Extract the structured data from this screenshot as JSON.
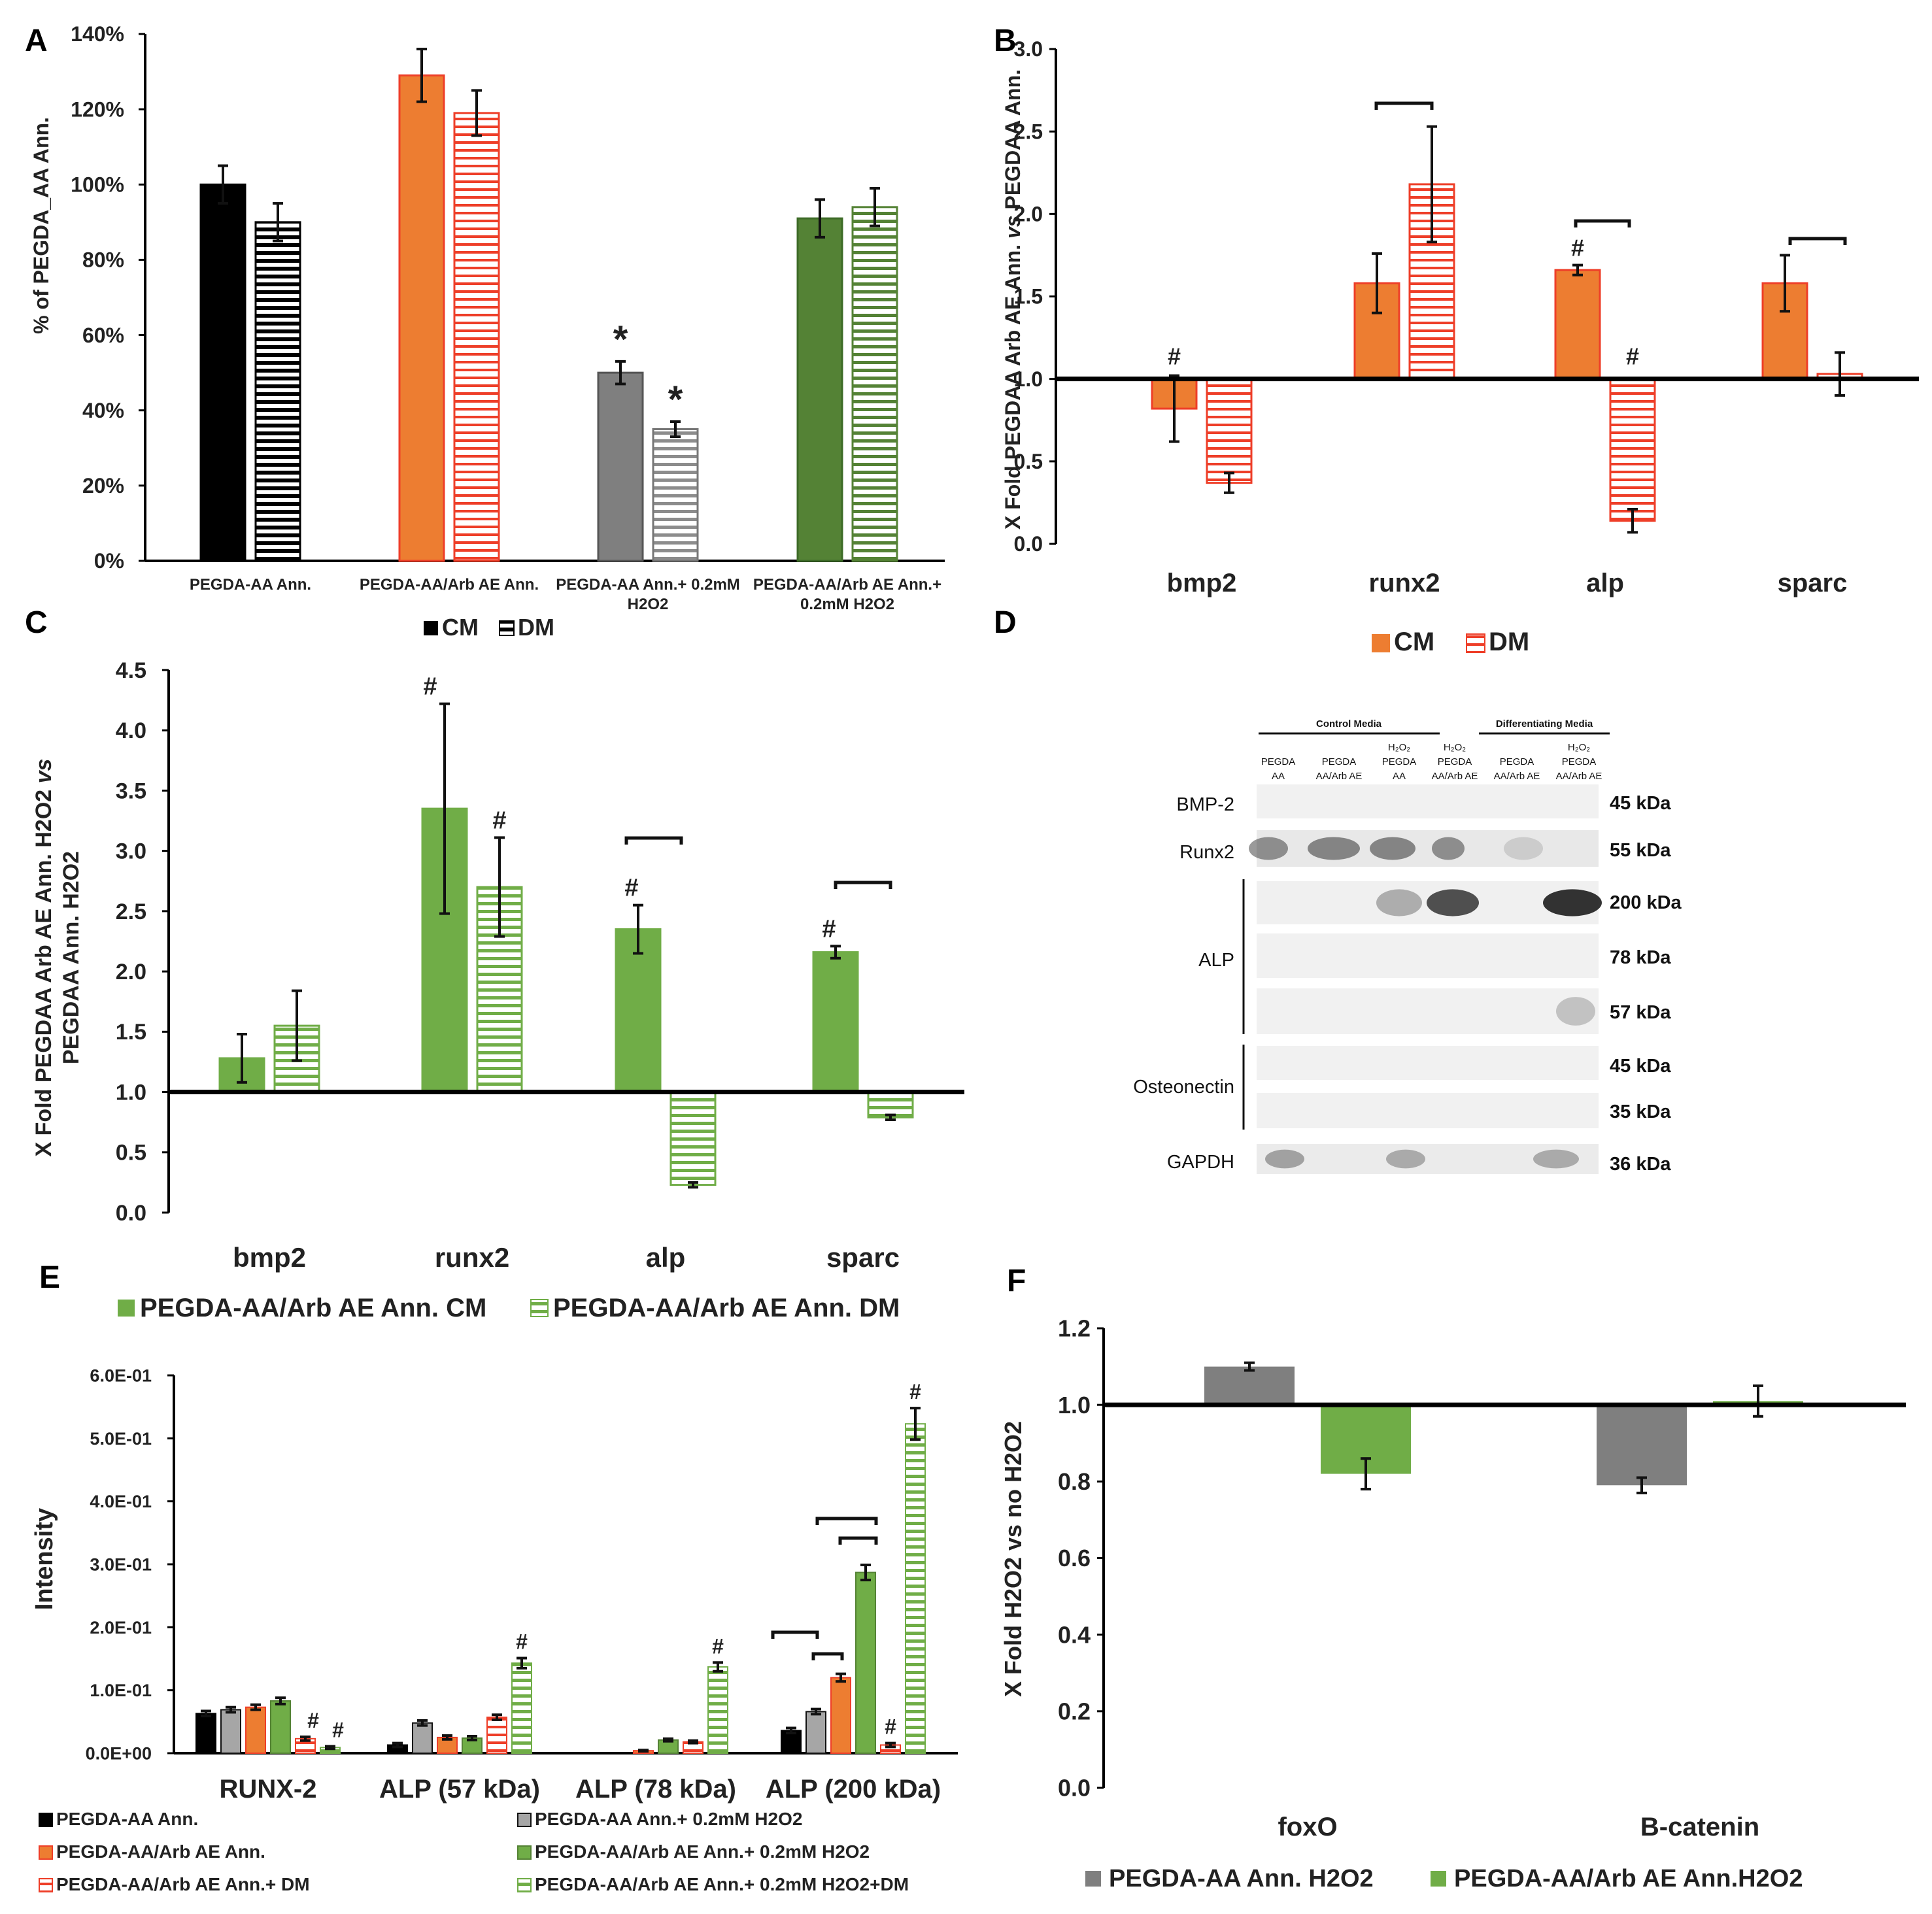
{
  "panel_labels": [
    "A",
    "B",
    "C",
    "D",
    "E",
    "F"
  ],
  "colors": {
    "black": "#000000",
    "gray": "#7f7f7f",
    "orange": "#ed7d31",
    "orange_stripe": "#ee3e28",
    "green": "#70ad47",
    "green_dark": "#548235",
    "axis": "#000000"
  },
  "chart_data": [
    {
      "panel": "A",
      "type": "bar",
      "ylabel": "% of PEGDA_AA Ann.",
      "ylim": [
        0,
        140
      ],
      "yticks": [
        "0%",
        "20%",
        "40%",
        "60%",
        "80%",
        "100%",
        "120%",
        "140%"
      ],
      "categories": [
        "PEGDA-AA Ann.",
        "PEGDA-AA/Arb AE Ann.",
        "PEGDA-AA Ann.+ 0.2mM H2O2",
        "PEGDA-AA/Arb AE Ann.+ 0.2mM H2O2"
      ],
      "series": [
        {
          "name": "CM",
          "values": [
            100,
            129,
            50,
            91
          ],
          "errors": [
            5,
            7,
            3,
            5
          ]
        },
        {
          "name": "DM",
          "values": [
            90,
            119,
            35,
            94
          ],
          "errors": [
            5,
            6,
            2,
            5
          ]
        }
      ],
      "annotations": [
        {
          "text": "*",
          "category": 2,
          "series": 0
        },
        {
          "text": "*",
          "category": 2,
          "series": 1
        }
      ],
      "legend": [
        "CM",
        "DM"
      ]
    },
    {
      "panel": "B",
      "type": "bar",
      "ylabel": "X Fold PEGDAA Arb AE Ann. vs PEGDAA Ann.",
      "ylim": [
        0,
        3.0
      ],
      "baseline": 1.0,
      "yticks": [
        "0.0",
        "0.5",
        "1.0",
        "1.5",
        "2.0",
        "2.5",
        "3.0"
      ],
      "categories": [
        "bmp2",
        "runx2",
        "alp",
        "sparc"
      ],
      "series": [
        {
          "name": "CM",
          "values": [
            0.82,
            1.58,
            1.66,
            1.58
          ],
          "errors": [
            0.2,
            0.18,
            0.03,
            0.17
          ]
        },
        {
          "name": "DM",
          "values": [
            0.37,
            2.18,
            0.14,
            1.03
          ],
          "errors": [
            0.06,
            0.35,
            0.07,
            0.13
          ]
        }
      ],
      "hash_marks": [
        {
          "category": 0,
          "series": 0
        },
        {
          "category": 2,
          "series": 0
        },
        {
          "category": 2,
          "series": 1
        }
      ],
      "brackets": [
        1,
        2,
        3
      ],
      "legend": [
        "CM",
        "DM"
      ]
    },
    {
      "panel": "C",
      "type": "bar",
      "ylabel": "X Fold PEGDAA Arb AE Ann. H2O2 vs PEGDAA Ann. H2O2",
      "ylim": [
        0,
        4.5
      ],
      "baseline": 1.0,
      "yticks": [
        "0.0",
        "0.5",
        "1.0",
        "1.5",
        "2.0",
        "2.5",
        "3.0",
        "3.5",
        "4.0",
        "4.5"
      ],
      "categories": [
        "bmp2",
        "runx2",
        "alp",
        "sparc"
      ],
      "series": [
        {
          "name": "PEGDA-AA/Arb AE Ann. CM",
          "values": [
            1.28,
            3.35,
            2.35,
            2.16
          ],
          "errors": [
            0.2,
            0.87,
            0.2,
            0.05
          ]
        },
        {
          "name": "PEGDA-AA/Arb AE Ann. DM",
          "values": [
            1.55,
            2.7,
            0.23,
            0.79
          ],
          "errors": [
            0.29,
            0.41,
            0.02,
            0.02
          ]
        }
      ],
      "hash_marks": [
        {
          "category": 1,
          "series": 0
        },
        {
          "category": 1,
          "series": 1
        },
        {
          "category": 2,
          "series": 0
        },
        {
          "category": 3,
          "series": 0
        }
      ],
      "brackets": [
        2,
        3
      ],
      "legend": [
        "PEGDA-AA/Arb AE Ann. CM",
        "PEGDA-AA/Arb AE Ann. DM"
      ]
    },
    {
      "panel": "E",
      "type": "bar",
      "ylabel": "Intensity",
      "ylim": [
        0,
        0.6
      ],
      "yticks": [
        "0.0E+00",
        "1.0E-01",
        "2.0E-01",
        "3.0E-01",
        "4.0E-01",
        "5.0E-01",
        "6.0E-01"
      ],
      "categories": [
        "RUNX-2",
        "ALP (57 kDa)",
        "ALP (78 kDa)",
        "ALP (200 kDa)"
      ],
      "series": [
        {
          "name": "PEGDA-AA Ann.",
          "values": [
            0.063,
            0.013,
            0.0,
            0.036
          ],
          "errors": [
            0.004,
            0.003,
            0,
            0.004
          ]
        },
        {
          "name": "PEGDA-AA Ann.+ 0.2mM H2O2",
          "values": [
            0.069,
            0.048,
            0.0,
            0.066
          ],
          "errors": [
            0.004,
            0.004,
            0,
            0.004
          ]
        },
        {
          "name": "PEGDA-AA/Arb AE Ann.",
          "values": [
            0.073,
            0.025,
            0.004,
            0.12
          ],
          "errors": [
            0.004,
            0.003,
            0.001,
            0.006
          ]
        },
        {
          "name": "PEGDA-AA/Arb AE Ann.+ 0.2mM H2O2",
          "values": [
            0.083,
            0.024,
            0.021,
            0.287
          ],
          "errors": [
            0.005,
            0.003,
            0.002,
            0.012
          ]
        },
        {
          "name": "PEGDA-AA/Arb AE Ann.+ DM",
          "values": [
            0.023,
            0.057,
            0.018,
            0.013
          ],
          "errors": [
            0.003,
            0.004,
            0.002,
            0.003
          ]
        },
        {
          "name": "PEGDA-AA/Arb AE Ann.+ 0.2mM H2O2+DM",
          "values": [
            0.009,
            0.143,
            0.137,
            0.523
          ],
          "errors": [
            0.002,
            0.008,
            0.007,
            0.025
          ]
        }
      ],
      "hash_marks": [
        {
          "category": 0,
          "series": 4
        },
        {
          "category": 0,
          "series": 5
        },
        {
          "category": 1,
          "series": 5
        },
        {
          "category": 2,
          "series": 5
        },
        {
          "category": 3,
          "series": 4
        },
        {
          "category": 3,
          "series": 5
        }
      ]
    },
    {
      "panel": "F",
      "type": "bar",
      "ylabel": "X Fold H2O2 vs no H2O2",
      "ylim": [
        0,
        1.2
      ],
      "baseline": 1.0,
      "yticks": [
        "0.0",
        "0.2",
        "0.4",
        "0.6",
        "0.8",
        "1.0",
        "1.2"
      ],
      "categories": [
        "foxO",
        "B-catenin"
      ],
      "series": [
        {
          "name": "PEGDA-AA Ann. H2O2",
          "values": [
            1.1,
            0.79
          ],
          "errors": [
            0.01,
            0.02
          ]
        },
        {
          "name": "PEGDA-AA/Arb AE Ann.H2O2",
          "values": [
            0.82,
            1.01
          ],
          "errors": [
            0.04,
            0.04
          ]
        }
      ],
      "legend": [
        "PEGDA-AA Ann. H2O2",
        "PEGDA-AA/Arb AE Ann.H2O2"
      ]
    }
  ],
  "panel_a": {
    "cat_lines": [
      [
        "PEGDA-AA Ann."
      ],
      [
        "PEGDA-AA/Arb AE Ann."
      ],
      [
        "PEGDA-AA Ann.+ 0.2mM",
        "H2O2"
      ],
      [
        "PEGDA-AA/Arb AE Ann.+",
        "0.2mM H2O2"
      ]
    ]
  },
  "panel_b": {
    "ylabel_parts": [
      "X Fold PEGDAA Arb AE Ann. ",
      "vs",
      " PEGDAA Ann."
    ]
  },
  "panel_c": {
    "ylabel_line1": [
      "X Fold PEGDAA Arb AE Ann. H2O2 ",
      "vs"
    ],
    "ylabel_line2": "PEGDAA Ann. H2O2"
  },
  "panel_e": {
    "legend_left": [
      "PEGDA-AA Ann.",
      "PEGDA-AA/Arb AE Ann.",
      "PEGDA-AA/Arb AE Ann.+ DM"
    ],
    "legend_right": [
      "PEGDA-AA Ann.+ 0.2mM H2O2",
      "PEGDA-AA/Arb AE Ann.+ 0.2mM H2O2",
      "PEGDA-AA/Arb AE Ann.+ 0.2mM H2O2+DM"
    ]
  },
  "western_blot": {
    "group_headers": [
      "Control Media",
      "Differentiating Media"
    ],
    "lanes": [
      [
        "PEGDA",
        "AA"
      ],
      [
        "PEGDA",
        "AA/Arb AE"
      ],
      [
        "H₂O₂",
        "PEGDA",
        "AA"
      ],
      [
        "H₂O₂",
        "PEGDA",
        "AA/Arb AE"
      ],
      [
        "PEGDA",
        "AA/Arb AE"
      ],
      [
        "H₂O₂",
        "PEGDA",
        "AA/Arb AE"
      ]
    ],
    "proteins": [
      "BMP-2",
      "Runx2",
      "ALP",
      "Osteonectin",
      "GAPDH"
    ],
    "sizes": [
      "45 kDa",
      "55 kDa",
      "200 kDa",
      "78 kDa",
      "57 kDa",
      "45 kDa",
      "35 kDa",
      "36 kDa"
    ]
  },
  "hash_symbol": "#",
  "star_symbol": "*"
}
